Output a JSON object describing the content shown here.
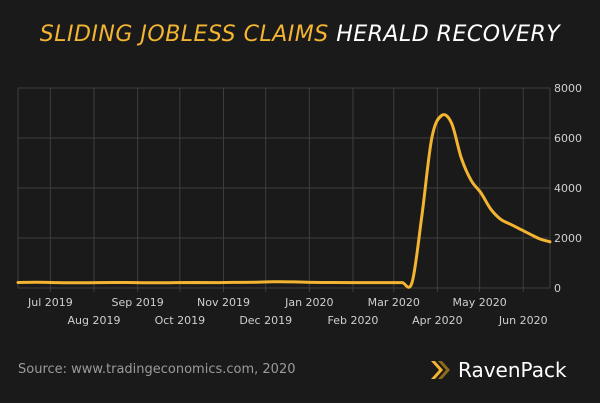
{
  "title": {
    "accent": "SLIDING JOBLESS CLAIMS",
    "main": "HERALD RECOVERY"
  },
  "source": "Source: www.tradingeconomics.com, 2020",
  "logo": {
    "text": "RavenPack"
  },
  "colors": {
    "background": "#1a1a1a",
    "line": "#f2b431",
    "grid": "#3e3e3e",
    "tick_text": "#cfcfcf"
  },
  "chart_data": {
    "type": "line",
    "title": "SLIDING JOBLESS CLAIMS HERALD RECOVERY",
    "xlabel": "",
    "ylabel": "",
    "ylim": [
      0,
      8000
    ],
    "yticks": [
      0,
      2000,
      4000,
      6000,
      8000
    ],
    "ytick_labels": [
      "0",
      "2000",
      "4000",
      "6000",
      "8000"
    ],
    "y_axis_side": "right",
    "grid": true,
    "xlim": [
      "2019-06-08",
      "2020-06-20"
    ],
    "xticks": [
      "2019-07-01",
      "2019-08-01",
      "2019-09-01",
      "2019-10-01",
      "2019-11-01",
      "2019-12-01",
      "2020-01-01",
      "2020-02-01",
      "2020-03-01",
      "2020-04-01",
      "2020-05-01",
      "2020-06-01"
    ],
    "xtick_labels": [
      "Jul 2019",
      "Aug 2019",
      "Sep 2019",
      "Oct 2019",
      "Nov 2019",
      "Dec 2019",
      "Jan 2020",
      "Feb 2020",
      "Mar 2020",
      "Apr 2020",
      "May 2020",
      "Jun 2020"
    ],
    "series": [
      {
        "x": [
          "2019-06-08",
          "2019-06-22",
          "2019-07-06",
          "2019-07-20",
          "2019-08-03",
          "2019-08-17",
          "2019-08-31",
          "2019-09-14",
          "2019-09-28",
          "2019-10-12",
          "2019-10-26",
          "2019-11-09",
          "2019-11-23",
          "2019-12-07",
          "2019-12-21",
          "2020-01-04",
          "2020-01-18",
          "2020-02-01",
          "2020-02-15",
          "2020-02-29",
          "2020-03-07",
          "2020-03-14",
          "2020-03-21",
          "2020-03-28",
          "2020-04-04",
          "2020-04-11",
          "2020-04-18",
          "2020-04-25",
          "2020-05-02",
          "2020-05-09",
          "2020-05-16",
          "2020-05-23",
          "2020-05-30",
          "2020-06-06",
          "2020-06-13",
          "2020-06-20"
        ],
        "values": [
          220,
          230,
          215,
          210,
          215,
          220,
          215,
          210,
          215,
          220,
          215,
          225,
          230,
          250,
          245,
          225,
          220,
          215,
          215,
          215,
          215,
          230,
          2900,
          6000,
          6900,
          6600,
          5200,
          4300,
          3800,
          3150,
          2750,
          2550,
          2350,
          2150,
          1960,
          1850
        ]
      }
    ]
  }
}
